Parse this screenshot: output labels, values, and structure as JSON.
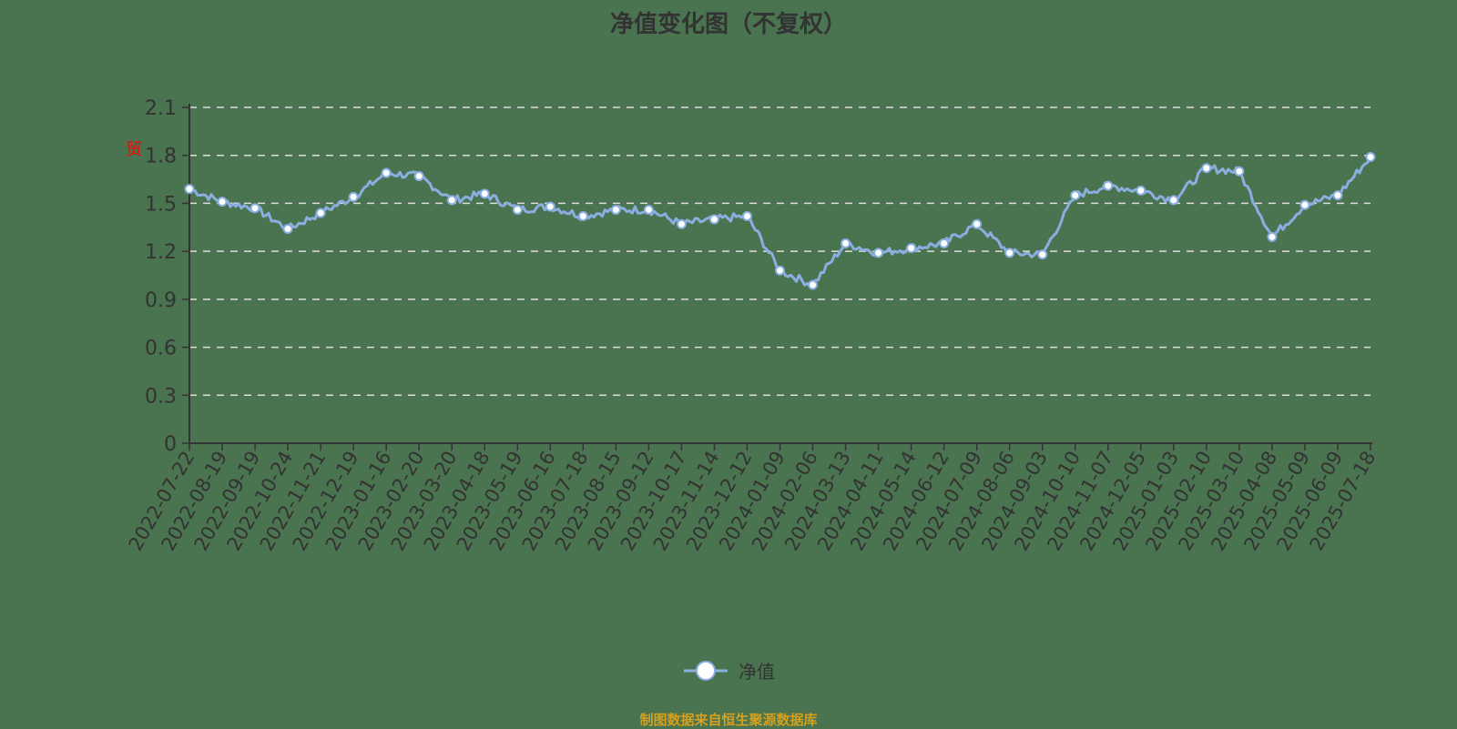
{
  "chart_data": {
    "type": "line",
    "title": "净值变化图（不复权）",
    "xlabel": "",
    "ylabel": "",
    "ylim": [
      0,
      2.1
    ],
    "yticks": [
      0,
      0.3,
      0.6,
      0.9,
      1.2,
      1.5,
      1.8,
      2.1
    ],
    "grid": "horizontal dashed",
    "legend_position": "bottom",
    "categories": [
      "2022-07-22",
      "2022-08-19",
      "2022-09-19",
      "2022-10-24",
      "2022-11-21",
      "2022-12-19",
      "2023-01-16",
      "2023-02-20",
      "2023-03-20",
      "2023-04-18",
      "2023-05-19",
      "2023-06-16",
      "2023-07-18",
      "2023-08-15",
      "2023-09-12",
      "2023-10-17",
      "2023-11-14",
      "2023-12-12",
      "2024-01-09",
      "2024-02-06",
      "2024-03-13",
      "2024-04-11",
      "2024-05-14",
      "2024-06-12",
      "2024-07-09",
      "2024-08-06",
      "2024-09-03",
      "2024-10-10",
      "2024-11-07",
      "2024-12-05",
      "2025-01-03",
      "2025-02-10",
      "2025-03-10",
      "2025-04-08",
      "2025-05-09",
      "2025-06-09",
      "2025-07-18"
    ],
    "series": [
      {
        "name": "净值",
        "color": "#8aaee0",
        "values": [
          1.59,
          1.51,
          1.47,
          1.34,
          1.44,
          1.54,
          1.69,
          1.67,
          1.52,
          1.56,
          1.46,
          1.48,
          1.42,
          1.46,
          1.46,
          1.37,
          1.4,
          1.42,
          1.08,
          0.99,
          1.25,
          1.19,
          1.22,
          1.25,
          1.37,
          1.19,
          1.18,
          1.55,
          1.61,
          1.58,
          1.52,
          1.72,
          1.7,
          1.29,
          1.49,
          1.55,
          1.79
        ]
      }
    ]
  },
  "legend": {
    "label": "净值"
  },
  "source": "制图数据来自恒生聚源数据库",
  "y_marker_glyph": "贸"
}
